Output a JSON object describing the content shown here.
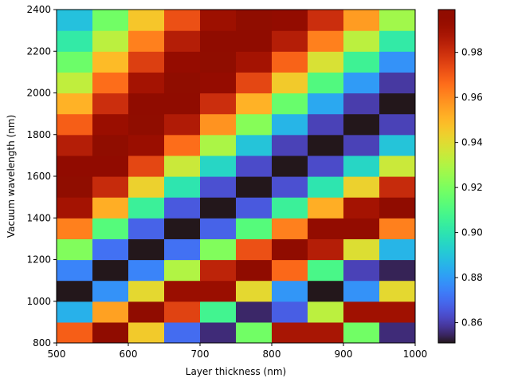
{
  "chart_data": {
    "type": "heatmap",
    "xlabel": "Layer thickness (nm)",
    "ylabel": "Vacuum wavelength (nm)",
    "x": [
      525,
      575,
      625,
      675,
      725,
      775,
      825,
      875,
      925,
      975
    ],
    "y": [
      850,
      950,
      1050,
      1150,
      1250,
      1350,
      1450,
      1550,
      1650,
      1750,
      1850,
      1950,
      2050,
      2150,
      2250,
      2350
    ],
    "z": [
      [
        0.969,
        0.998,
        0.945,
        0.87,
        0.856,
        0.918,
        0.988,
        0.988,
        0.918,
        0.856
      ],
      [
        0.885,
        0.955,
        0.998,
        0.975,
        0.907,
        0.855,
        0.867,
        0.932,
        0.99,
        0.99
      ],
      [
        0.851,
        0.878,
        0.941,
        0.992,
        0.992,
        0.941,
        0.879,
        0.851,
        0.878,
        0.941
      ],
      [
        0.875,
        0.851,
        0.875,
        0.93,
        0.983,
        0.998,
        0.967,
        0.909,
        0.861,
        0.854
      ],
      [
        0.921,
        0.871,
        0.851,
        0.871,
        0.921,
        0.972,
        0.998,
        0.985,
        0.939,
        0.886
      ],
      [
        0.962,
        0.912,
        0.868,
        0.851,
        0.868,
        0.912,
        0.962,
        0.995,
        0.995,
        0.962
      ],
      [
        0.989,
        0.952,
        0.905,
        0.866,
        0.851,
        0.866,
        0.905,
        0.952,
        0.989,
        0.998
      ],
      [
        0.999,
        0.981,
        0.943,
        0.9,
        0.864,
        0.851,
        0.864,
        0.9,
        0.943,
        0.981
      ],
      [
        0.996,
        0.996,
        0.974,
        0.935,
        0.895,
        0.863,
        0.851,
        0.863,
        0.895,
        0.935
      ],
      [
        0.985,
        0.999,
        0.992,
        0.966,
        0.929,
        0.89,
        0.861,
        0.851,
        0.861,
        0.89
      ],
      [
        0.969,
        0.992,
        0.999,
        0.986,
        0.958,
        0.922,
        0.886,
        0.861,
        0.851,
        0.861
      ],
      [
        0.951,
        0.98,
        0.997,
        0.997,
        0.98,
        0.951,
        0.916,
        0.883,
        0.86,
        0.851
      ],
      [
        0.933,
        0.966,
        0.989,
        0.999,
        0.994,
        0.974,
        0.945,
        0.911,
        0.88,
        0.859
      ],
      [
        0.917,
        0.949,
        0.976,
        0.994,
        0.999,
        0.989,
        0.968,
        0.938,
        0.906,
        0.878
      ],
      [
        0.902,
        0.932,
        0.962,
        0.985,
        0.998,
        0.998,
        0.985,
        0.962,
        0.932,
        0.902
      ],
      [
        0.889,
        0.918,
        0.946,
        0.972,
        0.991,
        0.999,
        0.995,
        0.98,
        0.956,
        0.927
      ]
    ],
    "colormap": "turbo",
    "xlim": [
      500,
      1000
    ],
    "xticks": [
      500,
      600,
      700,
      800,
      900,
      1000
    ],
    "ylim": [
      800,
      2400
    ],
    "yticks": [
      800,
      1000,
      1200,
      1400,
      1600,
      1800,
      2000,
      2200,
      2400
    ],
    "clim": [
      0.851,
      0.999
    ],
    "cticks": [
      0.86,
      0.88,
      {
        "value": 0.9,
        "label": "0.90"
      },
      0.92,
      0.94,
      0.96,
      0.98
    ]
  }
}
